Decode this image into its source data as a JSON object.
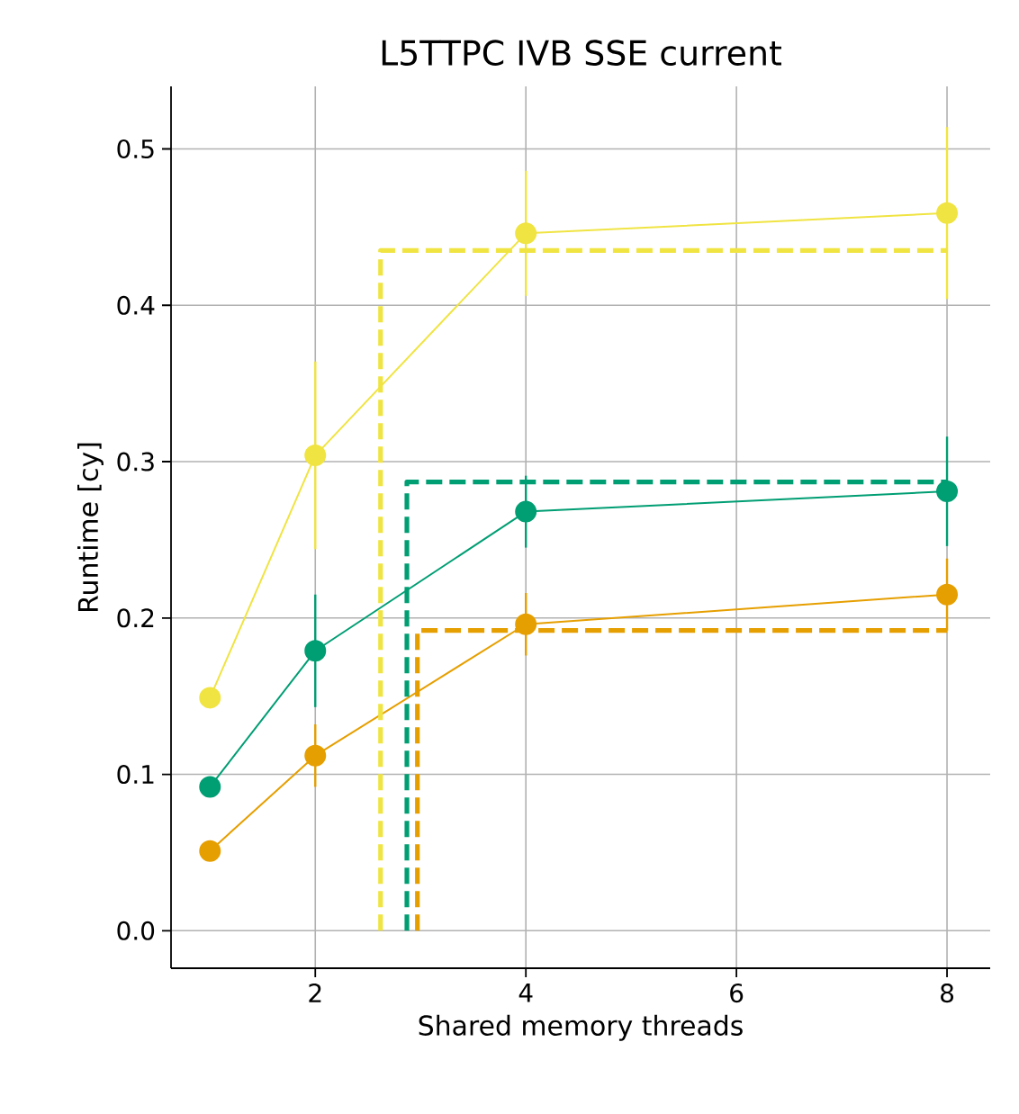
{
  "chart_data": {
    "type": "line",
    "title": "L5TTPC IVB SSE current",
    "xlabel": "Shared memory threads",
    "ylabel": "Runtime [cy]",
    "xlim": [
      0.63,
      8.41
    ],
    "ylim": [
      -0.024,
      0.54
    ],
    "xticks": [
      2,
      4,
      6,
      8
    ],
    "yticks": [
      {
        "value": 0,
        "label": "0.0"
      },
      {
        "value": 0.1,
        "label": "0.1"
      },
      {
        "value": 0.2,
        "label": "0.2"
      },
      {
        "value": 0.3,
        "label": "0.3"
      },
      {
        "value": 0.4,
        "label": "0.4"
      },
      {
        "value": 0.5,
        "label": "0.5"
      }
    ],
    "grid": true,
    "marker": "circle",
    "series": [
      {
        "color": "#f0e442",
        "x": [
          1,
          2,
          4,
          8
        ],
        "values": [
          0.149,
          0.304,
          0.446,
          0.459
        ],
        "errors": [
          null,
          0.06,
          0.04,
          0.055
        ]
      },
      {
        "color": "#009e73",
        "x": [
          1,
          2,
          4,
          8
        ],
        "values": [
          0.092,
          0.179,
          0.268,
          0.281
        ],
        "errors": [
          null,
          0.036,
          0.023,
          0.035
        ]
      },
      {
        "color": "#e69f00",
        "x": [
          1,
          2,
          4,
          8
        ],
        "values": [
          0.051,
          0.112,
          0.196,
          0.215
        ],
        "errors": [
          null,
          0.02,
          0.02,
          0.023
        ]
      },
      {
        "color": "#f0e442",
        "x": [
          2.62,
          2.62,
          8
        ],
        "values": [
          0,
          0.435,
          0.435
        ],
        "marker": "none",
        "line_style": "dashed"
      },
      {
        "color": "#009e73",
        "x": [
          2.87,
          2.87,
          8
        ],
        "values": [
          0,
          0.287,
          0.287
        ],
        "marker": "none",
        "line_style": "dashed"
      },
      {
        "color": "#e69f00",
        "x": [
          2.97,
          2.97,
          8
        ],
        "values": [
          0,
          0.192,
          0.192
        ],
        "marker": "none",
        "line_style": "dashed"
      }
    ]
  }
}
